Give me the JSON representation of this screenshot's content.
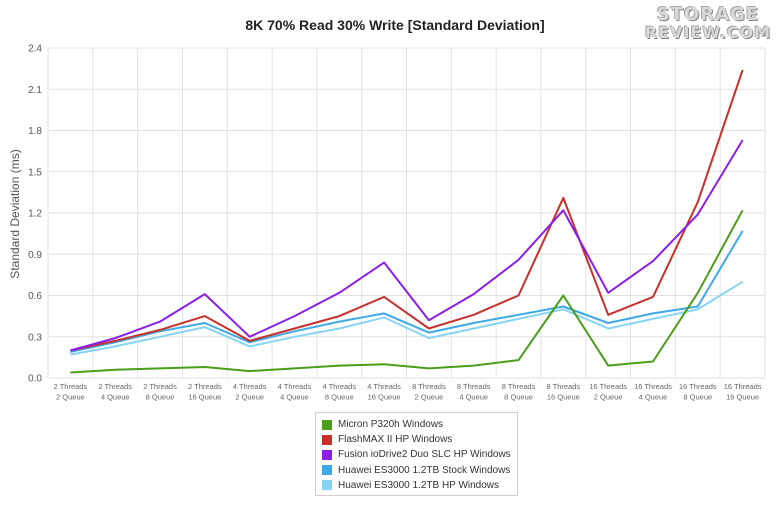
{
  "logo": {
    "line1": "STORAGE",
    "line2": "REVIEW.COM"
  },
  "chart_data": {
    "type": "line",
    "title": "8K 70% Read 30% Write [Standard Deviation]",
    "xlabel": "",
    "ylabel": "Standard Deviation (ms)",
    "ylim": [
      0,
      2.4
    ],
    "yticks": [
      "0.0",
      "0.3",
      "0.6",
      "0.9",
      "1.2",
      "1.5",
      "1.8",
      "2.1",
      "2.4"
    ],
    "grid": true,
    "legend_position": "bottom",
    "categories": [
      [
        "2 Threads",
        "2 Queue"
      ],
      [
        "2 Threads",
        "4 Queue"
      ],
      [
        "2 Threads",
        "8 Queue"
      ],
      [
        "2 Threads",
        "16 Queue"
      ],
      [
        "4 Threads",
        "2 Queue"
      ],
      [
        "4 Threads",
        "4 Queue"
      ],
      [
        "4 Threads",
        "8 Queue"
      ],
      [
        "4 Threads",
        "16 Queue"
      ],
      [
        "8 Threads",
        "2 Queue"
      ],
      [
        "8 Threads",
        "4 Queue"
      ],
      [
        "8 Threads",
        "8 Queue"
      ],
      [
        "8 Threads",
        "16 Queue"
      ],
      [
        "16 Threads",
        "2 Queue"
      ],
      [
        "16 Threads",
        "4 Queue"
      ],
      [
        "16 Threads",
        "8 Queue"
      ],
      [
        "16 Threads",
        "16 Queue"
      ]
    ],
    "series": [
      {
        "name": "Micron P320h Windows",
        "color": "#4a9e1a",
        "values": [
          0.04,
          0.06,
          0.07,
          0.08,
          0.05,
          0.07,
          0.09,
          0.1,
          0.07,
          0.09,
          0.13,
          0.6,
          0.09,
          0.12,
          0.62,
          1.22
        ]
      },
      {
        "name": "FlashMAX II HP Windows",
        "color": "#c9302c",
        "values": [
          0.2,
          0.27,
          0.35,
          0.45,
          0.27,
          0.36,
          0.45,
          0.59,
          0.36,
          0.46,
          0.6,
          1.31,
          0.46,
          0.59,
          1.28,
          2.24
        ]
      },
      {
        "name": "Fusion ioDrive2 Duo SLC HP Windows",
        "color": "#8b1fe8",
        "values": [
          0.2,
          0.29,
          0.41,
          0.61,
          0.3,
          0.45,
          0.62,
          0.84,
          0.42,
          0.61,
          0.86,
          1.22,
          0.62,
          0.85,
          1.19,
          1.73
        ]
      },
      {
        "name": "Huawei ES3000 1.2TB Stock Windows",
        "color": "#3fa9e8",
        "values": [
          0.19,
          0.26,
          0.34,
          0.4,
          0.26,
          0.34,
          0.41,
          0.47,
          0.33,
          0.4,
          0.46,
          0.52,
          0.4,
          0.47,
          0.52,
          1.07
        ]
      },
      {
        "name": "Huawei ES3000 1.2TB HP Windows",
        "color": "#86d4f5",
        "values": [
          0.17,
          0.23,
          0.3,
          0.37,
          0.23,
          0.3,
          0.36,
          0.44,
          0.29,
          0.36,
          0.43,
          0.5,
          0.36,
          0.43,
          0.5,
          0.7
        ]
      }
    ]
  }
}
